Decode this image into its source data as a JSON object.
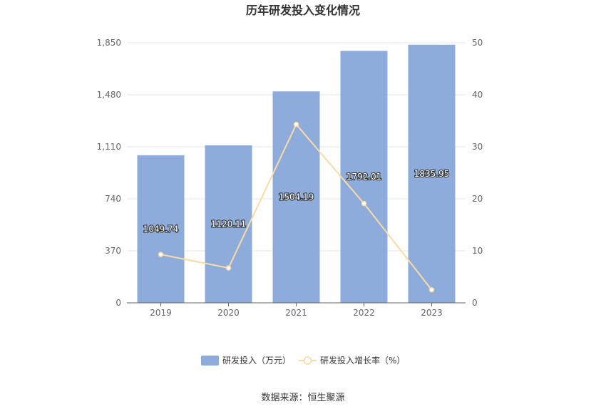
{
  "chart_data": {
    "type": "bar",
    "title": "历年研发投入变化情况",
    "categories": [
      "2019",
      "2020",
      "2021",
      "2022",
      "2023"
    ],
    "series": [
      {
        "name": "研发投入（万元）",
        "type": "bar",
        "axis": "left",
        "color": "#8eacdb",
        "values": [
          1049.74,
          1120.11,
          1504.19,
          1792.01,
          1835.95
        ]
      },
      {
        "name": "研发投入增长率（%）",
        "type": "line",
        "axis": "right",
        "color": "#f9dba3",
        "values": [
          9.3,
          6.7,
          34.3,
          19.1,
          2.5
        ]
      }
    ],
    "data_labels": [
      "1049.74",
      "1120.11",
      "1504.19",
      "1792.01",
      "1835.95"
    ],
    "y_left": {
      "ylim": [
        0,
        1850
      ],
      "ticks": [
        0,
        370,
        740,
        1110,
        1480,
        1850
      ],
      "tick_labels": [
        "0",
        "370",
        "740",
        "1,110",
        "1,480",
        "1,850"
      ]
    },
    "y_right": {
      "ylim": [
        0,
        50
      ],
      "ticks": [
        0,
        10,
        20,
        30,
        40,
        50
      ],
      "tick_labels": [
        "0",
        "10",
        "20",
        "30",
        "40",
        "50"
      ]
    },
    "xlabel": "",
    "ylabel": "",
    "grid": true,
    "legend": "bottom-center"
  },
  "source": "数据来源：恒生聚源"
}
